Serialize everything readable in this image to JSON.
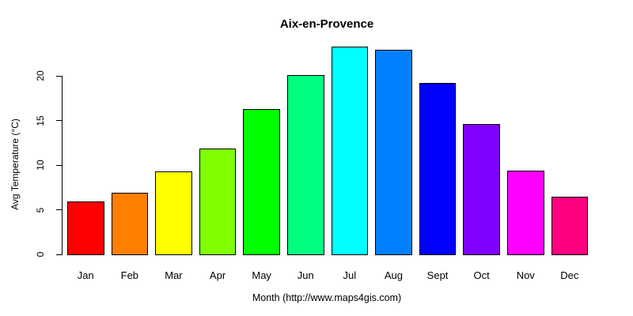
{
  "figure": {
    "title": "Aix-en-Provence",
    "background_color": "#FFFFFF",
    "text_color": "#000000"
  },
  "chart_data": {
    "type": "bar",
    "title": "Aix-en-Provence",
    "xlabel": "Month (http://www.maps4gis.com)",
    "ylabel": "Avg Temperature (°C)",
    "categories": [
      "Jan",
      "Feb",
      "Mar",
      "Apr",
      "May",
      "Jun",
      "Jul",
      "Aug",
      "Sept",
      "Oct",
      "Nov",
      "Dec"
    ],
    "values": [
      5.9,
      6.9,
      9.3,
      11.9,
      16.3,
      20.1,
      23.3,
      23.0,
      19.2,
      14.6,
      9.4,
      6.5
    ],
    "bar_colors": [
      "#FF0000",
      "#FF8000",
      "#FFFF00",
      "#80FF00",
      "#00FF00",
      "#00FF80",
      "#00FFFF",
      "#0080FF",
      "#0000FF",
      "#8000FF",
      "#FF00FF",
      "#FF0080"
    ],
    "bar_border_color": "#000000",
    "yticks": [
      0,
      5,
      10,
      15,
      20
    ],
    "ylim": [
      0,
      23.3
    ],
    "grid": false,
    "legend": null,
    "axis_color": "#000000"
  }
}
